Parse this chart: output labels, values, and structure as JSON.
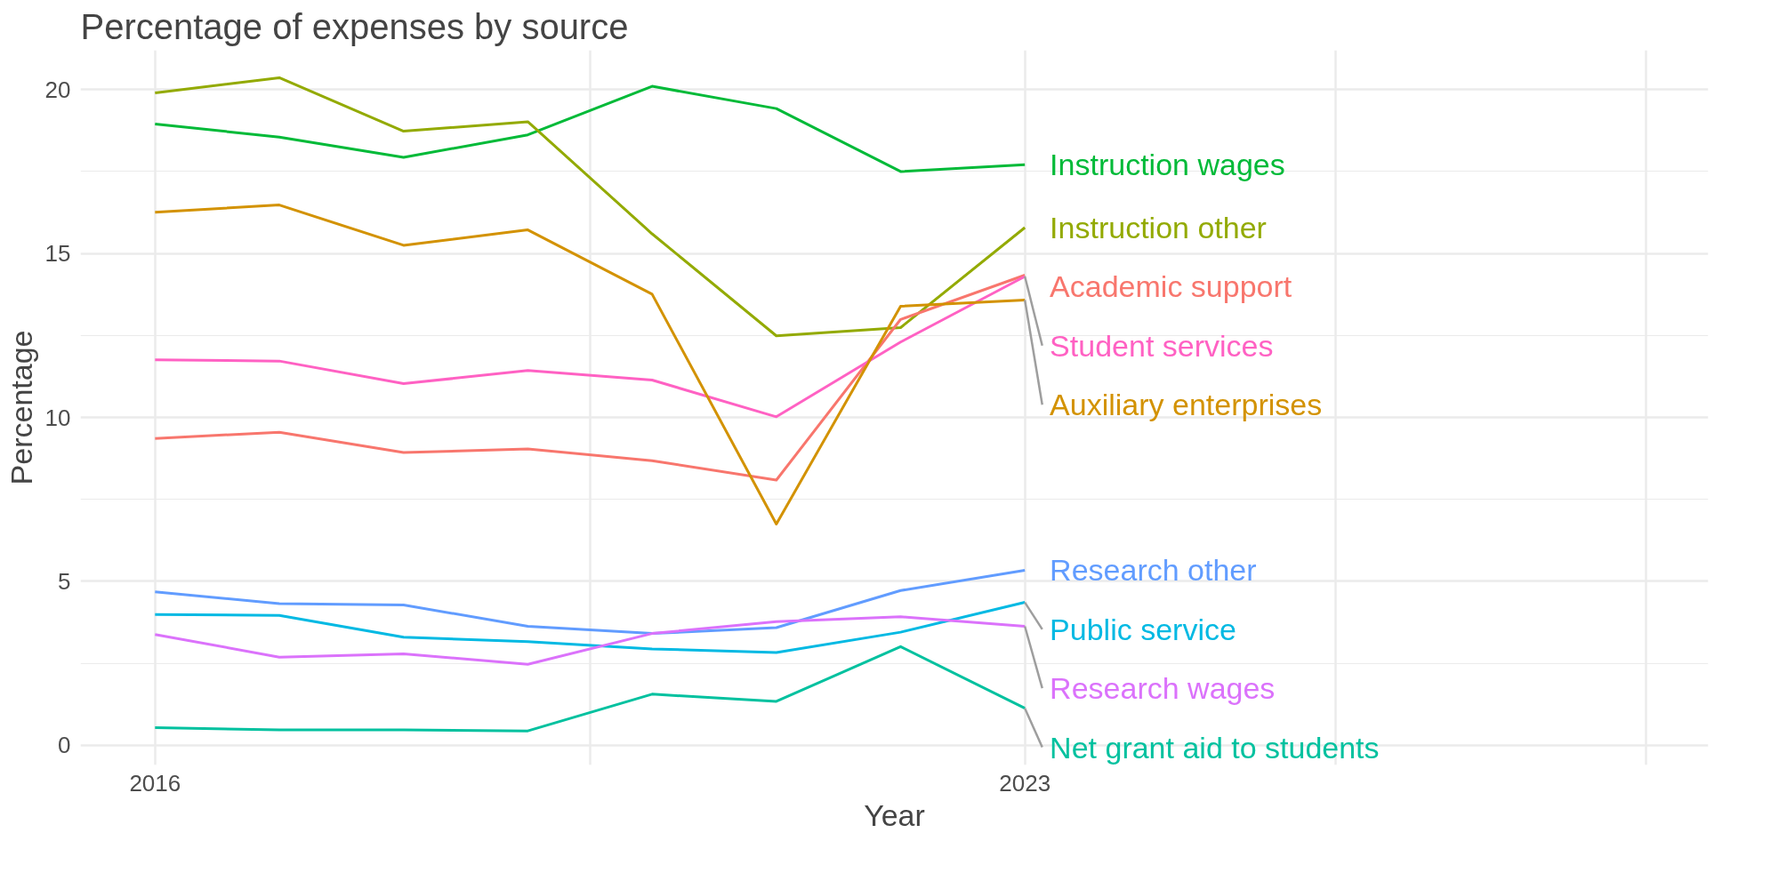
{
  "chart_data": {
    "type": "line",
    "title": "Percentage of expenses by source",
    "xlabel": "Year",
    "ylabel": "Percentage",
    "x": [
      2016,
      2017,
      2018,
      2019,
      2020,
      2021,
      2022,
      2023
    ],
    "xlim": [
      2015.4,
      2028.5
    ],
    "xticks": [
      2016,
      {
        "value": 2019.5,
        "label": null
      },
      2023,
      {
        "value": 2025.5,
        "label": null
      },
      {
        "value": 2028,
        "label": null
      }
    ],
    "ylim": [
      -0.6,
      21.2
    ],
    "yticks": [
      0,
      5,
      10,
      15,
      20
    ],
    "grid": true,
    "marker": "none",
    "line_style": "solid",
    "series": [
      {
        "name": "Instruction wages",
        "color": "#00ba38",
        "values": [
          18.95,
          18.55,
          17.93,
          18.62,
          20.1,
          19.42,
          17.5,
          17.71
        ]
      },
      {
        "name": "Instruction other",
        "color": "#93aa00",
        "values": [
          19.9,
          20.36,
          18.73,
          19.02,
          15.6,
          12.49,
          12.74,
          15.79
        ]
      },
      {
        "name": "Academic support",
        "color": "#f8766d",
        "values": [
          9.36,
          9.55,
          8.93,
          9.04,
          8.68,
          8.09,
          12.99,
          14.34
        ]
      },
      {
        "name": "Student services",
        "color": "#ff61c3",
        "values": [
          11.76,
          11.72,
          11.03,
          11.43,
          11.14,
          10.02,
          12.3,
          14.3
        ]
      },
      {
        "name": "Auxiliary enterprises",
        "color": "#d39200",
        "values": [
          16.26,
          16.48,
          15.25,
          15.72,
          13.76,
          6.75,
          13.39,
          13.58
        ]
      },
      {
        "name": "Research other",
        "color": "#619cff",
        "values": [
          4.68,
          4.32,
          4.28,
          3.63,
          3.41,
          3.59,
          4.72,
          5.34
        ]
      },
      {
        "name": "Public service",
        "color": "#00b9e3",
        "values": [
          3.99,
          3.96,
          3.3,
          3.16,
          2.94,
          2.83,
          3.45,
          4.36
        ]
      },
      {
        "name": "Research wages",
        "color": "#db72fb",
        "values": [
          3.38,
          2.69,
          2.79,
          2.47,
          3.41,
          3.77,
          3.92,
          3.63
        ]
      },
      {
        "name": "Net grant aid to students",
        "color": "#00c19f",
        "values": [
          0.54,
          0.47,
          0.47,
          0.44,
          1.56,
          1.34,
          3.01,
          1.13
        ]
      }
    ]
  }
}
